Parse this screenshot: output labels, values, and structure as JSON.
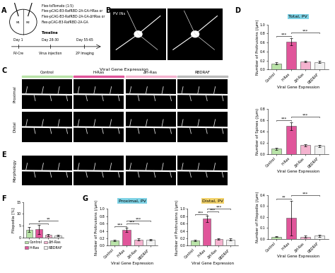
{
  "panel_labels": [
    "A",
    "B",
    "C",
    "D",
    "E",
    "F",
    "G"
  ],
  "schematic": {
    "constructs": [
      "Flex-tdTomato (1:5)",
      "Flex-pCAG-B3-RafRBD-2A-GA-HRas or",
      "Flex-pCAG-B3-RafRBD-2A-GA-ΔHRas or",
      "Flex-pCAG-B3-RafRBD-2A-GA"
    ],
    "regions": [
      "M1",
      "M2"
    ],
    "timeline_title": "Timeline",
    "timeline": [
      {
        "day": "Day 1",
        "event": "PV-Cre"
      },
      {
        "day": "Day 28-30",
        "event": "Virus injection"
      },
      {
        "day": "Day 55-65",
        "event": "2P Imaging"
      }
    ]
  },
  "images": {
    "cell_label": "PV INs",
    "header": "Viral Gene Expression",
    "conditions": [
      "Control",
      "H-Ras",
      "ΔH-Ras",
      "RBDRAF"
    ],
    "rows": [
      "Proximal",
      "Distal"
    ],
    "morphology_row": "Morphology"
  },
  "chart_data": [
    {
      "type": "bar",
      "title": "Total, PV",
      "x_label": "Viral Gene Expression",
      "y_label": "Number of Protrusions (/μm)",
      "categories": [
        "Control",
        "H-Ras",
        "ΔH-Ras",
        "RBDRAF"
      ],
      "values": [
        0.14,
        0.62,
        0.18,
        0.17
      ],
      "errors": [
        0.02,
        0.08,
        0.02,
        0.02
      ],
      "colors": [
        "#b9e3a8",
        "#e0559a",
        "#f4b3cf",
        "#f2f2f2"
      ],
      "ylim": [
        0.0,
        1.0
      ],
      "yticks": [
        0.0,
        0.2,
        0.4,
        0.6,
        0.8,
        1.0
      ],
      "tick_labels": true,
      "annotations": [
        {
          "text": "***",
          "between": [
            "Control",
            "H-Ras"
          ]
        },
        {
          "text": "***",
          "between": [
            "H-Ras",
            "RBDRAF"
          ]
        }
      ]
    },
    {
      "type": "bar",
      "x_label": "Viral Gene Expression",
      "y_label": "Number of Spines (/μm)",
      "categories": [
        "Control",
        "H-Ras",
        "ΔH-Ras",
        "RBDRAF"
      ],
      "values": [
        0.1,
        0.5,
        0.16,
        0.15
      ],
      "errors": [
        0.02,
        0.07,
        0.02,
        0.02
      ],
      "colors": [
        "#b9e3a8",
        "#e0559a",
        "#f4b3cf",
        "#f2f2f2"
      ],
      "ylim": [
        0.0,
        0.8
      ],
      "yticks": [
        0.0,
        0.2,
        0.4,
        0.6,
        0.8
      ],
      "tick_labels": true,
      "annotations": [
        {
          "text": "***",
          "between": [
            "Control",
            "H-Ras"
          ]
        },
        {
          "text": "***",
          "between": [
            "H-Ras",
            "RBDRAF"
          ]
        }
      ]
    },
    {
      "type": "bar",
      "x_label": "Viral Gene Expression",
      "y_label": "Number of Filopodia (/μm)",
      "categories": [
        "Control",
        "H-Ras",
        "ΔH-Ras",
        "RBDRAF"
      ],
      "values": [
        0.02,
        0.19,
        0.02,
        0.03
      ],
      "errors": [
        0.005,
        0.16,
        0.01,
        0.01
      ],
      "colors": [
        "#b9e3a8",
        "#e0559a",
        "#f4b3cf",
        "#f2f2f2"
      ],
      "ylim": [
        0.0,
        0.4
      ],
      "yticks": [
        0.0,
        0.1,
        0.2,
        0.3,
        0.4
      ],
      "tick_labels": true,
      "annotations": [
        {
          "text": "**",
          "between": [
            "Control",
            "H-Ras"
          ]
        },
        {
          "text": "***",
          "between": [
            "H-Ras",
            "RBDRAF"
          ]
        }
      ]
    },
    {
      "type": "bar",
      "y_label": "Filopodia [%]",
      "categories": [
        "Control",
        "H-Ras",
        "ΔH-Ras",
        "RBDRAF"
      ],
      "values": [
        3.3,
        3.4,
        1.0,
        0.8
      ],
      "errors": [
        1.0,
        2.0,
        0.5,
        0.4
      ],
      "colors": [
        "#b9e3a8",
        "#e0559a",
        "#f4b3cf",
        "#f2f2f2"
      ],
      "ylim": [
        0,
        15
      ],
      "yticks": [
        0,
        5,
        10,
        15
      ],
      "tick_labels": "y",
      "legend": "upper center",
      "annotations": [
        {
          "text": "*",
          "between": [
            "Control",
            "ΔH-Ras"
          ]
        },
        {
          "text": "**",
          "between": [
            "H-Ras",
            "RBDRAF"
          ]
        }
      ]
    },
    {
      "type": "bar",
      "title": "Proximal, PV",
      "x_label": "Viral Gene Expression",
      "y_label": "Number of Protrusions (/μm)",
      "categories": [
        "Control",
        "H-Ras",
        "ΔH-Ras",
        "RBDRAF"
      ],
      "values": [
        0.14,
        0.43,
        0.17,
        0.16
      ],
      "errors": [
        0.02,
        0.05,
        0.02,
        0.02
      ],
      "colors": [
        "#b9e3a8",
        "#e0559a",
        "#f4b3cf",
        "#f2f2f2"
      ],
      "ylim": [
        0.0,
        1.0
      ],
      "yticks": [
        0.0,
        0.2,
        0.4,
        0.6,
        0.8,
        1.0
      ],
      "tick_labels": true,
      "annotations": [
        {
          "text": "***",
          "between": [
            "Control",
            "H-Ras"
          ]
        },
        {
          "text": "***",
          "between": [
            "H-Ras",
            "ΔH-Ras"
          ]
        },
        {
          "text": "***",
          "between": [
            "H-Ras",
            "RBDRAF"
          ]
        }
      ]
    },
    {
      "type": "bar",
      "title": "Distal, PV",
      "x_label": "Viral Gene Expression",
      "y_label": "Number of Protrusions (/μm)",
      "categories": [
        "Control",
        "H-Ras",
        "ΔH-Ras",
        "RBDRAF"
      ],
      "values": [
        0.14,
        0.73,
        0.18,
        0.17
      ],
      "errors": [
        0.02,
        0.08,
        0.02,
        0.02
      ],
      "colors": [
        "#b9e3a8",
        "#e0559a",
        "#f4b3cf",
        "#f2f2f2"
      ],
      "ylim": [
        0.0,
        1.0
      ],
      "yticks": [
        0.0,
        0.2,
        0.4,
        0.6,
        0.8,
        1.0
      ],
      "tick_labels": true,
      "annotations": [
        {
          "text": "***",
          "between": [
            "Control",
            "H-Ras"
          ]
        },
        {
          "text": "***",
          "between": [
            "H-Ras",
            "ΔH-Ras"
          ]
        },
        {
          "text": "***",
          "between": [
            "H-Ras",
            "RBDRAF"
          ]
        }
      ]
    }
  ]
}
